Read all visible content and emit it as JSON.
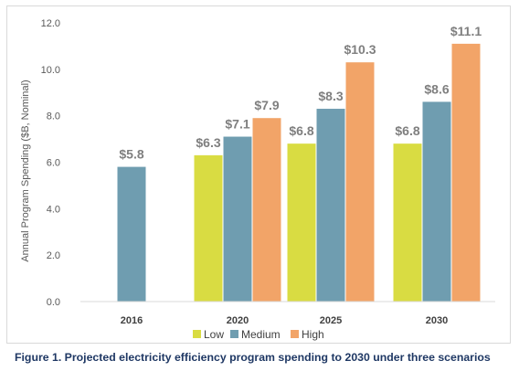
{
  "caption": "Figure 1. Projected electricity efficiency program spending to 2030 under three scenarios",
  "chart_data": {
    "type": "bar",
    "title": "",
    "xlabel": "",
    "ylabel": "Annual Program Spending ($B, Nominal)",
    "ylim": [
      0,
      12
    ],
    "yticks": [
      "0.0",
      "2.0",
      "4.0",
      "6.0",
      "8.0",
      "10.0",
      "12.0"
    ],
    "categories": [
      "2016",
      "2020",
      "2025",
      "2030"
    ],
    "series": [
      {
        "name": "Low",
        "color": "#d9dc42",
        "values": [
          null,
          6.3,
          6.8,
          6.8
        ],
        "labels": [
          null,
          "$6.3",
          "$6.8",
          "$6.8"
        ]
      },
      {
        "name": "Medium",
        "color": "#6f9db0",
        "values": [
          5.8,
          7.1,
          8.3,
          8.6
        ],
        "labels": [
          "$5.8",
          "$7.1",
          "$8.3",
          "$8.6"
        ]
      },
      {
        "name": "High",
        "color": "#f2a468",
        "values": [
          null,
          7.9,
          10.3,
          11.1
        ],
        "labels": [
          null,
          "$7.9",
          "$10.3",
          "$11.1"
        ]
      }
    ],
    "grid": false,
    "legend": "bottom"
  }
}
